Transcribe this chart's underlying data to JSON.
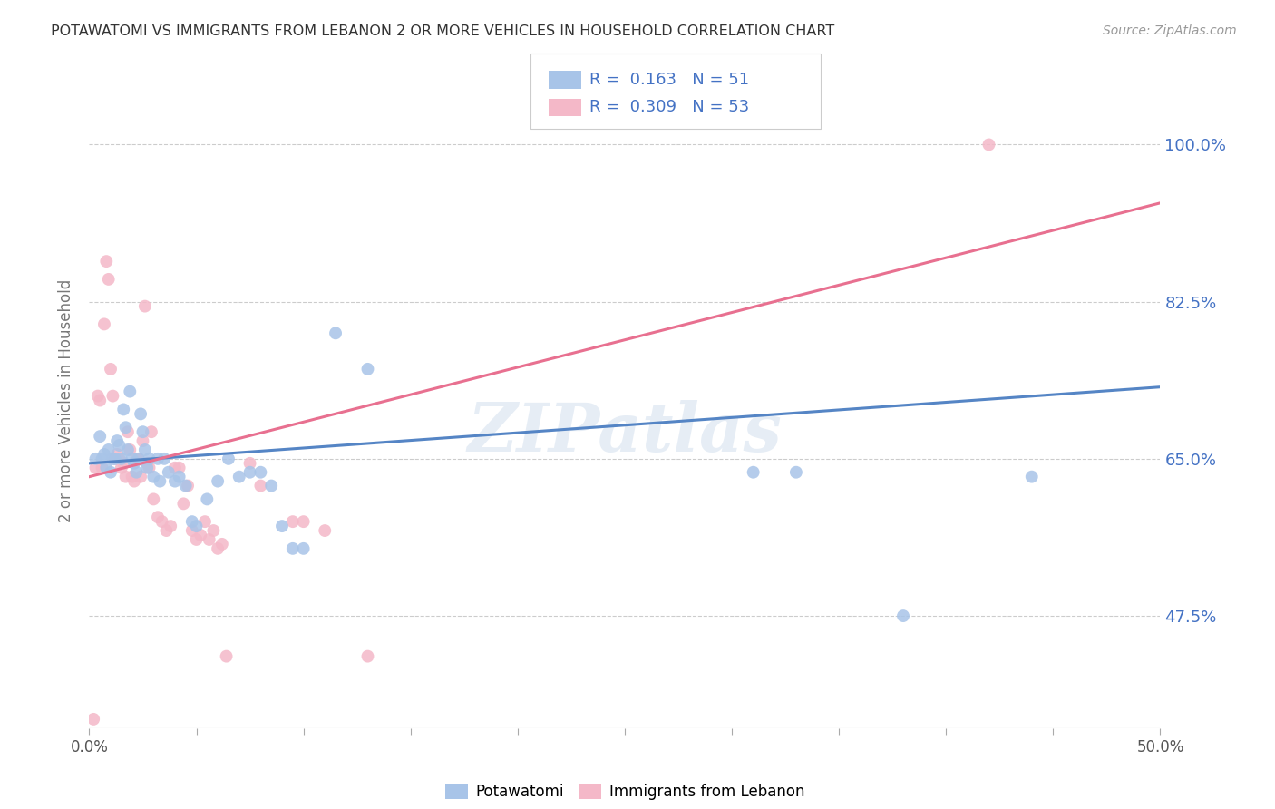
{
  "title": "POTAWATOMI VS IMMIGRANTS FROM LEBANON 2 OR MORE VEHICLES IN HOUSEHOLD CORRELATION CHART",
  "source": "Source: ZipAtlas.com",
  "ylabel": "2 or more Vehicles in Household",
  "yticks": [
    47.5,
    65.0,
    82.5,
    100.0
  ],
  "ytick_labels": [
    "47.5%",
    "65.0%",
    "82.5%",
    "100.0%"
  ],
  "xmin": 0.0,
  "xmax": 0.5,
  "ymin": 35.0,
  "ymax": 108.0,
  "watermark": "ZIPatlas",
  "blue_color": "#a8c4e8",
  "pink_color": "#f4b8c8",
  "blue_line_color": "#5585c5",
  "pink_line_color": "#e87090",
  "blue_scatter": [
    [
      0.003,
      65.0
    ],
    [
      0.005,
      67.5
    ],
    [
      0.006,
      65.0
    ],
    [
      0.007,
      65.5
    ],
    [
      0.008,
      64.0
    ],
    [
      0.009,
      66.0
    ],
    [
      0.01,
      63.5
    ],
    [
      0.011,
      65.0
    ],
    [
      0.012,
      65.0
    ],
    [
      0.013,
      67.0
    ],
    [
      0.014,
      66.5
    ],
    [
      0.015,
      65.0
    ],
    [
      0.016,
      70.5
    ],
    [
      0.017,
      68.5
    ],
    [
      0.018,
      66.0
    ],
    [
      0.019,
      72.5
    ],
    [
      0.02,
      65.0
    ],
    [
      0.021,
      64.5
    ],
    [
      0.022,
      63.5
    ],
    [
      0.023,
      65.0
    ],
    [
      0.024,
      70.0
    ],
    [
      0.025,
      68.0
    ],
    [
      0.026,
      66.0
    ],
    [
      0.027,
      64.0
    ],
    [
      0.028,
      65.0
    ],
    [
      0.03,
      63.0
    ],
    [
      0.032,
      65.0
    ],
    [
      0.033,
      62.5
    ],
    [
      0.035,
      65.0
    ],
    [
      0.037,
      63.5
    ],
    [
      0.04,
      62.5
    ],
    [
      0.042,
      63.0
    ],
    [
      0.045,
      62.0
    ],
    [
      0.048,
      58.0
    ],
    [
      0.05,
      57.5
    ],
    [
      0.055,
      60.5
    ],
    [
      0.06,
      62.5
    ],
    [
      0.065,
      65.0
    ],
    [
      0.07,
      63.0
    ],
    [
      0.075,
      63.5
    ],
    [
      0.08,
      63.5
    ],
    [
      0.085,
      62.0
    ],
    [
      0.09,
      57.5
    ],
    [
      0.095,
      55.0
    ],
    [
      0.1,
      55.0
    ],
    [
      0.115,
      79.0
    ],
    [
      0.13,
      75.0
    ],
    [
      0.31,
      63.5
    ],
    [
      0.33,
      63.5
    ],
    [
      0.38,
      47.5
    ],
    [
      0.44,
      63.0
    ]
  ],
  "pink_scatter": [
    [
      0.002,
      36.0
    ],
    [
      0.003,
      64.0
    ],
    [
      0.004,
      72.0
    ],
    [
      0.005,
      71.5
    ],
    [
      0.006,
      64.0
    ],
    [
      0.007,
      80.0
    ],
    [
      0.008,
      87.0
    ],
    [
      0.009,
      85.0
    ],
    [
      0.01,
      75.0
    ],
    [
      0.011,
      72.0
    ],
    [
      0.012,
      65.0
    ],
    [
      0.013,
      65.5
    ],
    [
      0.014,
      65.0
    ],
    [
      0.015,
      64.0
    ],
    [
      0.016,
      64.5
    ],
    [
      0.017,
      63.0
    ],
    [
      0.018,
      68.0
    ],
    [
      0.019,
      66.0
    ],
    [
      0.02,
      63.0
    ],
    [
      0.021,
      62.5
    ],
    [
      0.022,
      65.0
    ],
    [
      0.023,
      65.0
    ],
    [
      0.024,
      63.0
    ],
    [
      0.025,
      67.0
    ],
    [
      0.026,
      82.0
    ],
    [
      0.027,
      64.5
    ],
    [
      0.028,
      64.0
    ],
    [
      0.029,
      68.0
    ],
    [
      0.03,
      60.5
    ],
    [
      0.032,
      58.5
    ],
    [
      0.034,
      58.0
    ],
    [
      0.036,
      57.0
    ],
    [
      0.038,
      57.5
    ],
    [
      0.04,
      64.0
    ],
    [
      0.042,
      64.0
    ],
    [
      0.044,
      60.0
    ],
    [
      0.046,
      62.0
    ],
    [
      0.048,
      57.0
    ],
    [
      0.05,
      56.0
    ],
    [
      0.052,
      56.5
    ],
    [
      0.054,
      58.0
    ],
    [
      0.056,
      56.0
    ],
    [
      0.058,
      57.0
    ],
    [
      0.06,
      55.0
    ],
    [
      0.062,
      55.5
    ],
    [
      0.064,
      43.0
    ],
    [
      0.075,
      64.5
    ],
    [
      0.08,
      62.0
    ],
    [
      0.095,
      58.0
    ],
    [
      0.1,
      58.0
    ],
    [
      0.11,
      57.0
    ],
    [
      0.13,
      43.0
    ],
    [
      0.42,
      100.0
    ]
  ],
  "blue_trendline": [
    [
      0.0,
      64.5
    ],
    [
      0.5,
      73.0
    ]
  ],
  "pink_trendline": [
    [
      0.0,
      63.0
    ],
    [
      0.5,
      93.5
    ]
  ]
}
